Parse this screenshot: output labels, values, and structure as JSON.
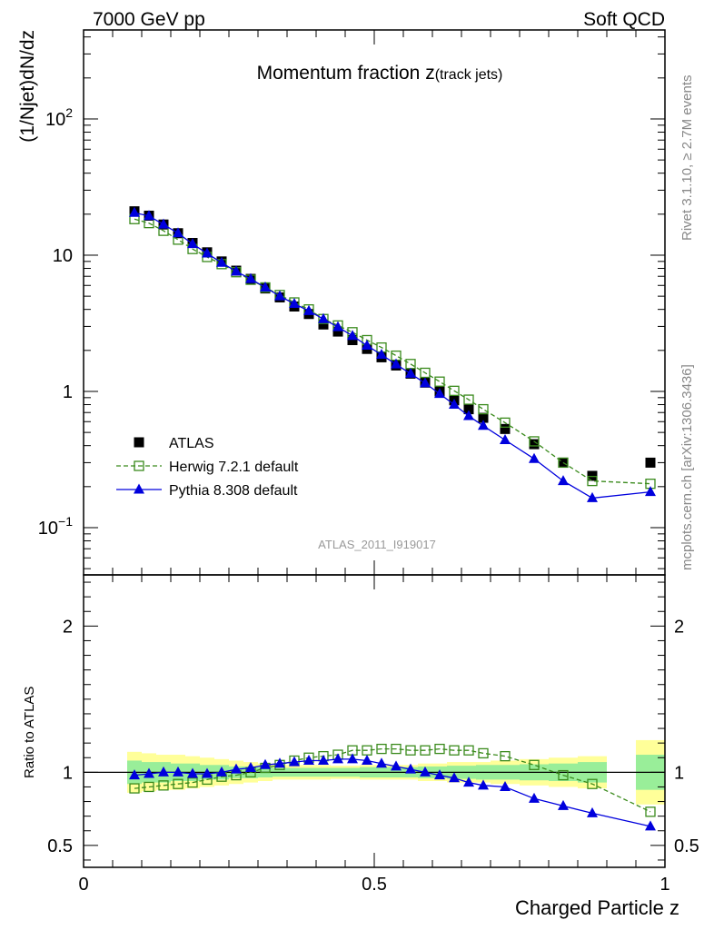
{
  "header": {
    "left": "7000 GeV pp",
    "right": "Soft QCD"
  },
  "side": {
    "rivet": "Rivet 3.1.10, ≥ 2.7M events",
    "mcplots": "mcplots.cern.ch [arXiv:1306.3436]"
  },
  "watermark": "ATLAS_2011_I919017",
  "chart_data": [
    {
      "type": "scatter",
      "panel": "main",
      "title_main": "Momentum fraction z",
      "title_sub": "(track jets)",
      "ylabel": "(1/Njet)dN/dz",
      "xlabel": "Charged Particle z",
      "xlim": [
        0,
        1
      ],
      "ylim": [
        0.045,
        450
      ],
      "yscale": "log",
      "yticks": [
        {
          "value": 0.1,
          "base": "10",
          "exp": "−1"
        },
        {
          "value": 1,
          "label": "1"
        },
        {
          "value": 10,
          "label": "10"
        },
        {
          "value": 100,
          "base": "10",
          "exp": "2"
        }
      ],
      "xticks": [
        {
          "value": 0,
          "label": "0"
        },
        {
          "value": 0.5,
          "label": "0.5"
        },
        {
          "value": 1,
          "label": "1"
        }
      ],
      "legend_position": "bottom-left",
      "x": [
        0.0875,
        0.1125,
        0.1375,
        0.1625,
        0.1875,
        0.2125,
        0.2375,
        0.2625,
        0.2875,
        0.3125,
        0.3375,
        0.3625,
        0.3875,
        0.4125,
        0.4375,
        0.4625,
        0.4875,
        0.5125,
        0.5375,
        0.5625,
        0.5875,
        0.6125,
        0.6375,
        0.6625,
        0.6875,
        0.725,
        0.775,
        0.825,
        0.875,
        0.975
      ],
      "series": [
        {
          "name": "ATLAS",
          "marker": "square-filled",
          "color": "#000000",
          "values": [
            21,
            19.5,
            16.8,
            14.5,
            12.3,
            10.5,
            9.0,
            7.7,
            6.7,
            5.7,
            4.9,
            4.2,
            3.7,
            3.1,
            2.75,
            2.38,
            2.05,
            1.78,
            1.55,
            1.35,
            1.16,
            1.0,
            0.86,
            0.74,
            0.64,
            0.53,
            0.41,
            0.3,
            0.24,
            0.3
          ]
        },
        {
          "name": "Herwig 7.2.1 default",
          "marker": "square-open",
          "line": "dashed",
          "color": "#3a8a1c",
          "values": [
            18.4,
            17.2,
            15.1,
            13.0,
            11.1,
            9.7,
            8.6,
            7.5,
            6.6,
            5.8,
            5.1,
            4.5,
            4.0,
            3.4,
            3.05,
            2.72,
            2.38,
            2.1,
            1.83,
            1.59,
            1.37,
            1.18,
            1.01,
            0.87,
            0.74,
            0.59,
            0.43,
            0.3,
            0.22,
            0.21
          ]
        },
        {
          "name": "Pythia 8.308 default",
          "marker": "triangle-filled",
          "line": "solid",
          "color": "#0000dd",
          "values": [
            20.5,
            19.4,
            16.8,
            14.5,
            12.1,
            10.3,
            8.8,
            7.6,
            6.7,
            5.8,
            5.0,
            4.4,
            3.9,
            3.4,
            2.97,
            2.56,
            2.17,
            1.86,
            1.58,
            1.35,
            1.15,
            0.96,
            0.8,
            0.66,
            0.56,
            0.44,
            0.32,
            0.22,
            0.165,
            0.183
          ]
        }
      ]
    },
    {
      "type": "scatter",
      "panel": "ratio",
      "ylabel": "Ratio to ATLAS",
      "xlim": [
        0,
        1
      ],
      "ylim": [
        0.35,
        2.35
      ],
      "yticks": [
        {
          "value": 0.5,
          "label": "0.5"
        },
        {
          "value": 1,
          "label": "1"
        },
        {
          "value": 2,
          "label": "2"
        }
      ],
      "bands": {
        "x_low": [
          0.075,
          0.1,
          0.125,
          0.15,
          0.175,
          0.2,
          0.225,
          0.25,
          0.275,
          0.3,
          0.325,
          0.35,
          0.375,
          0.4,
          0.425,
          0.45,
          0.475,
          0.5,
          0.525,
          0.55,
          0.575,
          0.6,
          0.625,
          0.65,
          0.675,
          0.7,
          0.75,
          0.8,
          0.85,
          0.95
        ],
        "x_high": [
          0.1,
          0.125,
          0.15,
          0.175,
          0.2,
          0.225,
          0.25,
          0.275,
          0.3,
          0.325,
          0.35,
          0.375,
          0.4,
          0.425,
          0.45,
          0.475,
          0.5,
          0.525,
          0.55,
          0.575,
          0.6,
          0.625,
          0.65,
          0.675,
          0.7,
          0.75,
          0.8,
          0.85,
          0.9,
          1.0
        ],
        "inner": [
          0.08,
          0.07,
          0.07,
          0.06,
          0.06,
          0.05,
          0.05,
          0.04,
          0.04,
          0.035,
          0.03,
          0.03,
          0.03,
          0.03,
          0.03,
          0.03,
          0.035,
          0.035,
          0.035,
          0.035,
          0.04,
          0.04,
          0.045,
          0.045,
          0.05,
          0.05,
          0.055,
          0.06,
          0.07,
          0.12
        ],
        "outer": [
          0.14,
          0.13,
          0.12,
          0.12,
          0.11,
          0.1,
          0.09,
          0.08,
          0.07,
          0.06,
          0.05,
          0.05,
          0.05,
          0.05,
          0.045,
          0.045,
          0.05,
          0.05,
          0.05,
          0.05,
          0.06,
          0.06,
          0.07,
          0.07,
          0.07,
          0.08,
          0.09,
          0.1,
          0.11,
          0.22
        ],
        "inner_color": "#99ee99",
        "outer_color": "#ffff99"
      },
      "series": [
        {
          "name": "Herwig 7.2.1 default",
          "marker": "square-open",
          "line": "dashed",
          "color": "#3a8a1c",
          "values": [
            0.89,
            0.9,
            0.91,
            0.92,
            0.93,
            0.95,
            0.97,
            0.98,
            1.0,
            1.03,
            1.05,
            1.08,
            1.1,
            1.11,
            1.12,
            1.15,
            1.15,
            1.16,
            1.16,
            1.15,
            1.15,
            1.16,
            1.15,
            1.15,
            1.13,
            1.11,
            1.05,
            0.98,
            0.92,
            0.73
          ]
        },
        {
          "name": "Pythia 8.308 default",
          "marker": "triangle-filled",
          "line": "solid",
          "color": "#0000dd",
          "values": [
            0.98,
            0.99,
            1.0,
            1.0,
            0.99,
            0.99,
            1.0,
            1.02,
            1.03,
            1.05,
            1.06,
            1.07,
            1.08,
            1.08,
            1.09,
            1.09,
            1.08,
            1.06,
            1.04,
            1.02,
            1.0,
            0.98,
            0.96,
            0.93,
            0.91,
            0.9,
            0.82,
            0.77,
            0.72,
            0.63
          ]
        }
      ]
    }
  ]
}
